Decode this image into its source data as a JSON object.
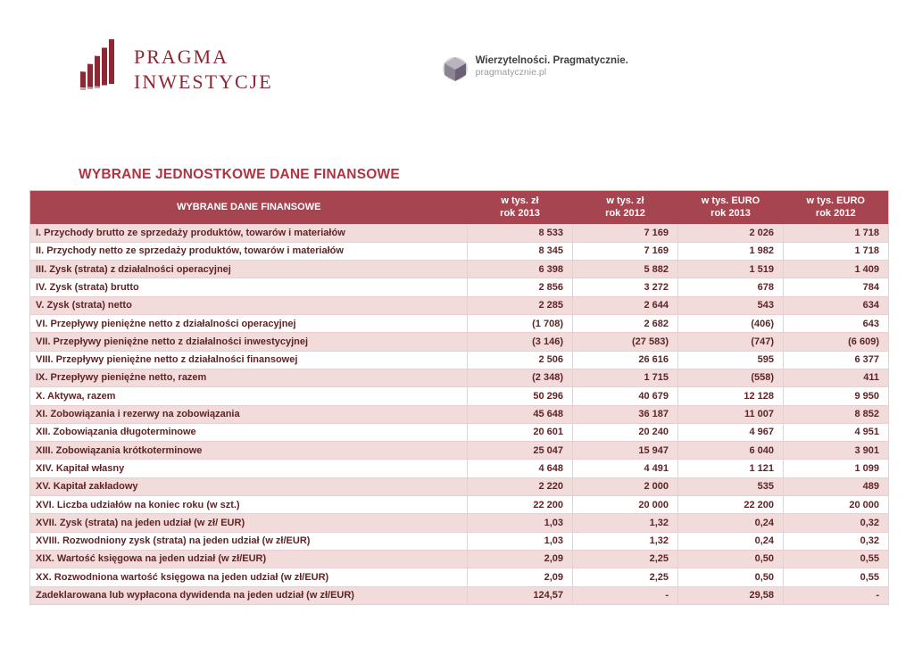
{
  "logo": {
    "line1": "PRAGMA",
    "line2": "INWESTYCJE"
  },
  "tagline": {
    "line1": "Wierzytelności. Pragmatycznie.",
    "line2": "pragmatycznie.pl"
  },
  "title": "WYBRANE JEDNOSTKOWE DANE FINANSOWE",
  "table": {
    "header": {
      "label": "WYBRANE DANE FINANSOWE",
      "columns": [
        {
          "unit": "w tys. zł",
          "year": "rok 2013"
        },
        {
          "unit": "w tys. zł",
          "year": "rok 2012"
        },
        {
          "unit": "w tys. EURO",
          "year": "rok 2013"
        },
        {
          "unit": "w tys. EURO",
          "year": "rok 2012"
        }
      ]
    },
    "rows": [
      {
        "label": "I. Przychody brutto ze sprzedaży produktów, towarów i materiałów",
        "values": [
          "8 533",
          "7 169",
          "2 026",
          "1 718"
        ]
      },
      {
        "label": "II. Przychody netto ze sprzedaży produktów, towarów i materiałów",
        "values": [
          "8 345",
          "7 169",
          "1 982",
          "1 718"
        ]
      },
      {
        "label": "III. Zysk (strata) z działalności operacyjnej",
        "values": [
          "6 398",
          "5 882",
          "1 519",
          "1 409"
        ]
      },
      {
        "label": "IV. Zysk (strata) brutto",
        "values": [
          "2 856",
          "3 272",
          "678",
          "784"
        ]
      },
      {
        "label": "V. Zysk (strata) netto",
        "values": [
          "2 285",
          "2 644",
          "543",
          "634"
        ]
      },
      {
        "label": "VI. Przepływy pieniężne netto z działalności operacyjnej",
        "values": [
          "(1 708)",
          "2 682",
          "(406)",
          "643"
        ]
      },
      {
        "label": "VII. Przepływy pieniężne netto z działalności inwestycyjnej",
        "values": [
          "(3 146)",
          "(27 583)",
          "(747)",
          "(6 609)"
        ]
      },
      {
        "label": "VIII. Przepływy pieniężne netto z działalności finansowej",
        "values": [
          "2 506",
          "26 616",
          "595",
          "6 377"
        ]
      },
      {
        "label": "IX. Przepływy pieniężne netto, razem",
        "values": [
          "(2 348)",
          "1 715",
          "(558)",
          "411"
        ]
      },
      {
        "label": "X. Aktywa, razem",
        "values": [
          "50 296",
          "40 679",
          "12 128",
          "9 950"
        ]
      },
      {
        "label": "XI. Zobowiązania i rezerwy na zobowiązania",
        "values": [
          "45 648",
          "36 187",
          "11 007",
          "8 852"
        ]
      },
      {
        "label": "XII. Zobowiązania długoterminowe",
        "values": [
          "20 601",
          "20 240",
          "4 967",
          "4 951"
        ]
      },
      {
        "label": "XIII. Zobowiązania krótkoterminowe",
        "values": [
          "25 047",
          "15 947",
          "6 040",
          "3 901"
        ]
      },
      {
        "label": "XIV. Kapitał własny",
        "values": [
          "4 648",
          "4 491",
          "1 121",
          "1 099"
        ]
      },
      {
        "label": "XV. Kapitał zakładowy",
        "values": [
          "2 220",
          "2 000",
          "535",
          "489"
        ]
      },
      {
        "label": "XVI. Liczba udziałów na koniec roku (w szt.)",
        "values": [
          "22 200",
          "20 000",
          "22 200",
          "20 000"
        ]
      },
      {
        "label": "XVII. Zysk (strata) na jeden udział (w zł/ EUR)",
        "values": [
          "1,03",
          "1,32",
          "0,24",
          "0,32"
        ]
      },
      {
        "label": "XVIII. Rozwodniony zysk (strata) na jeden udział (w zł/EUR)",
        "values": [
          "1,03",
          "1,32",
          "0,24",
          "0,32"
        ]
      },
      {
        "label": "XIX. Wartość księgowa na jeden udział (w zł/EUR)",
        "values": [
          "2,09",
          "2,25",
          "0,50",
          "0,55"
        ]
      },
      {
        "label": "XX. Rozwodniona wartość księgowa na jeden udział (w zł/EUR)",
        "values": [
          "2,09",
          "2,25",
          "0,50",
          "0,55"
        ]
      },
      {
        "label": "Zadeklarowana lub wypłacona dywidenda na jeden udział (w zł/EUR)",
        "values": [
          "124,57",
          "-",
          "29,58",
          "-"
        ]
      }
    ]
  },
  "colors": {
    "header_bg": "#a64550",
    "row_alt_bg": "#f2dbdb",
    "text": "#5f2425",
    "title": "#b03442",
    "brand": "#8e2634"
  }
}
